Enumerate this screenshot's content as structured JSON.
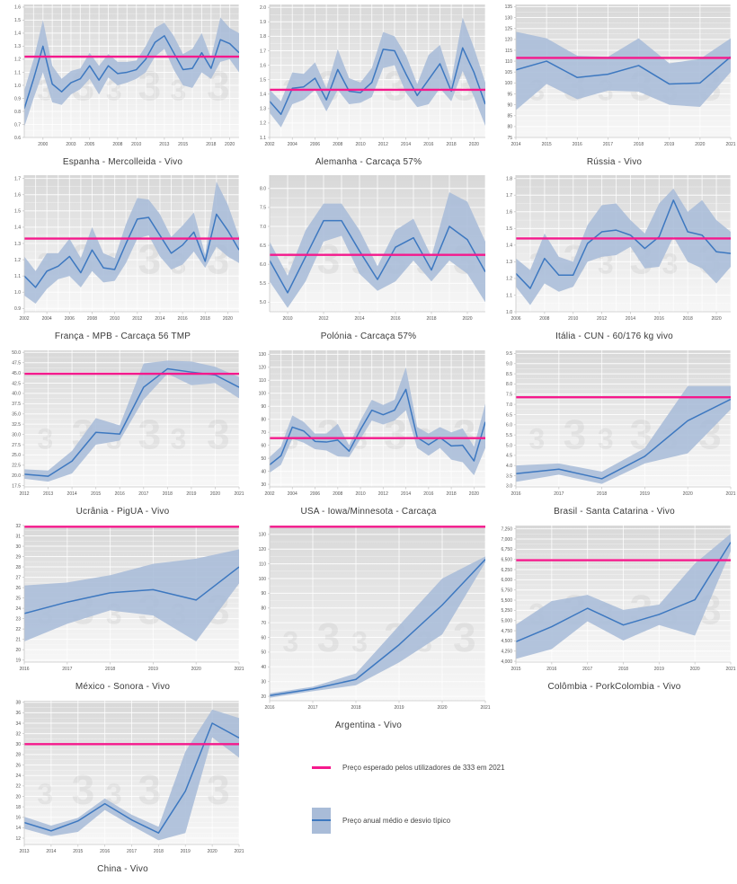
{
  "legend": {
    "expected_label": "Preço esperado pelos utilizadores de 333 em 2021",
    "band_label": "Preço anual médio e desvio típico"
  },
  "watermark": {
    "glyph": "3"
  },
  "colors": {
    "mean_line": "#3d78c0",
    "band_fill": "#a9bcd8",
    "expected_line": "#f5198c",
    "plot_bg_top": "#d8d8d8",
    "plot_bg_mid": "#e9e9e9",
    "plot_bg_bottom": "#f7f7f7",
    "grid": "#ffffff",
    "axis_line": "#c8c8c8",
    "tick_text": "#555555",
    "watermark": "#808080"
  },
  "chart_data": [
    {
      "type": "area",
      "title": "Espanha - Mercolleida - Vivo",
      "x": [
        1998,
        1999,
        2000,
        2001,
        2002,
        2003,
        2004,
        2005,
        2006,
        2007,
        2008,
        2009,
        2010,
        2011,
        2012,
        2013,
        2014,
        2015,
        2016,
        2017,
        2018,
        2019,
        2020,
        2021
      ],
      "mean": [
        0.82,
        1.05,
        1.3,
        1.01,
        0.95,
        1.02,
        1.05,
        1.15,
        1.04,
        1.15,
        1.09,
        1.1,
        1.12,
        1.2,
        1.33,
        1.38,
        1.25,
        1.12,
        1.13,
        1.25,
        1.13,
        1.35,
        1.32,
        1.25
      ],
      "lower": [
        0.68,
        0.9,
        1.1,
        0.87,
        0.85,
        0.93,
        0.97,
        1.05,
        0.93,
        1.06,
        1.0,
        1.02,
        1.05,
        1.1,
        1.22,
        1.28,
        1.12,
        1.0,
        0.98,
        1.1,
        1.05,
        1.18,
        1.2,
        1.1
      ],
      "upper": [
        0.96,
        1.2,
        1.5,
        1.15,
        1.05,
        1.11,
        1.13,
        1.25,
        1.15,
        1.24,
        1.18,
        1.18,
        1.19,
        1.3,
        1.44,
        1.48,
        1.38,
        1.24,
        1.28,
        1.4,
        1.21,
        1.52,
        1.44,
        1.4
      ],
      "expected": 1.22,
      "ylim": [
        0.6,
        1.62
      ],
      "ystep": 0.1,
      "comma": false,
      "xticks": [
        2000,
        2003,
        2005,
        2008,
        2010,
        2013,
        2015,
        2018,
        2020
      ]
    },
    {
      "type": "area",
      "title": "Alemanha - Carcaça 57%",
      "x": [
        2002,
        2003,
        2004,
        2005,
        2006,
        2007,
        2008,
        2009,
        2010,
        2011,
        2012,
        2013,
        2014,
        2015,
        2016,
        2017,
        2018,
        2019,
        2020,
        2021
      ],
      "mean": [
        1.35,
        1.26,
        1.44,
        1.45,
        1.51,
        1.36,
        1.57,
        1.42,
        1.41,
        1.48,
        1.71,
        1.7,
        1.54,
        1.39,
        1.5,
        1.61,
        1.42,
        1.72,
        1.55,
        1.33
      ],
      "lower": [
        1.27,
        1.17,
        1.33,
        1.36,
        1.43,
        1.28,
        1.43,
        1.33,
        1.34,
        1.38,
        1.58,
        1.6,
        1.41,
        1.31,
        1.33,
        1.44,
        1.35,
        1.56,
        1.38,
        1.18
      ],
      "upper": [
        1.43,
        1.35,
        1.55,
        1.54,
        1.62,
        1.44,
        1.71,
        1.51,
        1.48,
        1.58,
        1.83,
        1.8,
        1.67,
        1.47,
        1.67,
        1.74,
        1.49,
        1.93,
        1.72,
        1.48
      ],
      "expected": 1.43,
      "ylim": [
        1.1,
        2.02
      ],
      "ystep": 0.1,
      "comma": false,
      "xticks": [
        2002,
        2004,
        2006,
        2008,
        2010,
        2012,
        2014,
        2016,
        2018,
        2020
      ]
    },
    {
      "type": "area",
      "title": "Rússia - Vivo",
      "x": [
        2014,
        2015,
        2016,
        2017,
        2018,
        2019,
        2020,
        2021
      ],
      "mean": [
        106,
        110,
        102.5,
        104,
        108,
        99.5,
        100,
        112
      ],
      "lower": [
        87.5,
        99.5,
        92.5,
        96.5,
        96,
        90,
        89,
        105
      ],
      "upper": [
        123.5,
        120.5,
        112.5,
        112,
        120.5,
        109,
        111,
        120.5
      ],
      "expected": 111.5,
      "ylim": [
        75,
        136
      ],
      "ystep": 5,
      "comma": false,
      "xticks": [
        2014,
        2015,
        2016,
        2017,
        2018,
        2019,
        2020,
        2021
      ]
    },
    {
      "type": "area",
      "title": "França - MPB - Carcaça 56 TMP",
      "x": [
        2002,
        2003,
        2004,
        2005,
        2006,
        2007,
        2008,
        2009,
        2010,
        2011,
        2012,
        2013,
        2014,
        2015,
        2016,
        2017,
        2018,
        2019,
        2020,
        2021
      ],
      "mean": [
        1.1,
        1.03,
        1.13,
        1.16,
        1.22,
        1.12,
        1.26,
        1.15,
        1.14,
        1.3,
        1.45,
        1.46,
        1.35,
        1.24,
        1.29,
        1.37,
        1.19,
        1.48,
        1.38,
        1.26
      ],
      "lower": [
        0.98,
        0.93,
        1.02,
        1.08,
        1.1,
        1.03,
        1.13,
        1.06,
        1.07,
        1.18,
        1.33,
        1.35,
        1.22,
        1.14,
        1.17,
        1.25,
        1.15,
        1.28,
        1.22,
        1.18
      ],
      "upper": [
        1.22,
        1.13,
        1.24,
        1.24,
        1.33,
        1.21,
        1.4,
        1.24,
        1.21,
        1.42,
        1.58,
        1.57,
        1.48,
        1.34,
        1.41,
        1.49,
        1.23,
        1.68,
        1.54,
        1.34
      ],
      "expected": 1.33,
      "ylim": [
        0.88,
        1.72
      ],
      "ystep": 0.1,
      "comma": false,
      "xticks": [
        2002,
        2004,
        2006,
        2008,
        2010,
        2012,
        2014,
        2016,
        2018,
        2020
      ]
    },
    {
      "type": "area",
      "title": "Polónia - Carcaça 57%",
      "x": [
        2009,
        2010,
        2011,
        2012,
        2013,
        2014,
        2015,
        2016,
        2017,
        2018,
        2019,
        2020,
        2021
      ],
      "mean": [
        6.1,
        5.25,
        6.2,
        7.15,
        7.15,
        6.35,
        5.6,
        6.45,
        6.7,
        5.85,
        7.0,
        6.65,
        5.8
      ],
      "lower": [
        5.55,
        4.85,
        5.55,
        6.6,
        6.75,
        5.75,
        5.3,
        5.55,
        6.1,
        5.55,
        6.1,
        5.75,
        5.0
      ],
      "upper": [
        6.6,
        5.7,
        6.9,
        7.6,
        7.6,
        6.9,
        5.95,
        6.9,
        7.2,
        6.2,
        7.9,
        7.65,
        6.6
      ],
      "expected": 6.25,
      "ylim": [
        4.75,
        8.35
      ],
      "ystep": 0.5,
      "comma": false,
      "xticks": [
        2010,
        2012,
        2014,
        2016,
        2018,
        2020
      ]
    },
    {
      "type": "area",
      "title": "Itália - CUN - 60/176 kg vivo",
      "x": [
        2006,
        2007,
        2008,
        2009,
        2010,
        2011,
        2012,
        2013,
        2014,
        2015,
        2016,
        2017,
        2018,
        2019,
        2020,
        2021
      ],
      "mean": [
        1.23,
        1.14,
        1.32,
        1.22,
        1.22,
        1.41,
        1.48,
        1.49,
        1.46,
        1.38,
        1.45,
        1.67,
        1.48,
        1.46,
        1.36,
        1.35
      ],
      "lower": [
        1.15,
        1.04,
        1.17,
        1.12,
        1.15,
        1.3,
        1.33,
        1.34,
        1.39,
        1.26,
        1.27,
        1.45,
        1.3,
        1.26,
        1.17,
        1.27
      ],
      "upper": [
        1.32,
        1.25,
        1.47,
        1.33,
        1.3,
        1.52,
        1.64,
        1.65,
        1.55,
        1.47,
        1.65,
        1.74,
        1.6,
        1.67,
        1.55,
        1.48
      ],
      "expected": 1.44,
      "ylim": [
        1.0,
        1.82
      ],
      "ystep": 0.1,
      "comma": false,
      "xticks": [
        2006,
        2008,
        2010,
        2012,
        2014,
        2016,
        2018,
        2020
      ]
    },
    {
      "type": "area",
      "title": "Ucrânia - PigUA - Vivo",
      "x": [
        2012,
        2013,
        2014,
        2015,
        2016,
        2017,
        2018,
        2019,
        2020,
        2021
      ],
      "mean": [
        20.3,
        19.8,
        23.5,
        30.5,
        30.1,
        41.5,
        46.0,
        45.2,
        44.5,
        41.5
      ],
      "lower": [
        19.2,
        18.5,
        20.5,
        27.5,
        28.5,
        38.5,
        44.8,
        42.0,
        42.5,
        38.8
      ],
      "upper": [
        21.5,
        21.2,
        26.0,
        34.0,
        32.2,
        47.3,
        48.0,
        47.8,
        46.5,
        44.0
      ],
      "expected": 44.8,
      "ylim": [
        17.2,
        50.5
      ],
      "ystep": 2.5,
      "comma": false,
      "xticks": [
        2012,
        2013,
        2014,
        2015,
        2016,
        2017,
        2018,
        2019,
        2020,
        2021
      ]
    },
    {
      "type": "area",
      "title": "USA - Iowa/Minnesota - Carcaça",
      "x": [
        2002,
        2003,
        2004,
        2005,
        2006,
        2007,
        2008,
        2009,
        2010,
        2011,
        2012,
        2013,
        2014,
        2015,
        2016,
        2017,
        2018,
        2019,
        2020,
        2021
      ],
      "mean": [
        45,
        52,
        74,
        71,
        63,
        62.5,
        64,
        55.5,
        72,
        87,
        83.5,
        87,
        103,
        66,
        60.5,
        66,
        59.5,
        60,
        48,
        78
      ],
      "lower": [
        39,
        45,
        65,
        62,
        57,
        56,
        51.5,
        51,
        65,
        79,
        76,
        79,
        87,
        58,
        52,
        58,
        49,
        47,
        37,
        58
      ],
      "upper": [
        51,
        59,
        83,
        78,
        69,
        69,
        76.5,
        60,
        79,
        95,
        91,
        95,
        120,
        74,
        69,
        74,
        70,
        73,
        59,
        92
      ],
      "expected": 65.5,
      "ylim": [
        28,
        133
      ],
      "ystep": 10,
      "comma": false,
      "xticks": [
        2002,
        2004,
        2006,
        2008,
        2010,
        2012,
        2014,
        2016,
        2018,
        2020
      ]
    },
    {
      "type": "area",
      "title": "Brasil - Santa Catarina - Vivo",
      "x": [
        2016,
        2017,
        2018,
        2019,
        2020,
        2021
      ],
      "mean": [
        3.6,
        3.82,
        3.35,
        4.45,
        6.2,
        7.25
      ],
      "lower": [
        3.2,
        3.55,
        3.1,
        4.1,
        4.6,
        6.75
      ],
      "upper": [
        4.0,
        4.1,
        3.7,
        4.85,
        7.9,
        7.9
      ],
      "expected": 7.35,
      "ylim": [
        2.95,
        9.65
      ],
      "ystep": 0.5,
      "comma": false,
      "xticks": [
        2016,
        2017,
        2018,
        2019,
        2020,
        2021
      ]
    },
    {
      "type": "area",
      "title": "México - Sonora - Vivo",
      "x": [
        2016,
        2017,
        2018,
        2019,
        2020,
        2021
      ],
      "mean": [
        23.5,
        24.6,
        25.5,
        25.8,
        24.8,
        28.0
      ],
      "lower": [
        20.8,
        22.5,
        23.8,
        23.3,
        20.8,
        26.4
      ],
      "upper": [
        26.2,
        26.5,
        27.2,
        28.3,
        28.8,
        29.7
      ],
      "expected": 32,
      "ylim": [
        18.8,
        32
      ],
      "ystep": 1,
      "comma": false,
      "xticks": [
        2016,
        2017,
        2018,
        2019,
        2020,
        2021
      ]
    },
    {
      "type": "area",
      "title": "Argentina - Vivo",
      "x": [
        2016,
        2017,
        2018,
        2019,
        2020,
        2021
      ],
      "mean": [
        20.5,
        25,
        31.5,
        55,
        82,
        113
      ],
      "lower": [
        19,
        23.5,
        27.5,
        43,
        62,
        111
      ],
      "upper": [
        22,
        26.5,
        35.5,
        68,
        100,
        115
      ],
      "expected": 135.5,
      "ylim": [
        17,
        136
      ],
      "ystep": 10,
      "comma": false,
      "xticks": [
        2016,
        2017,
        2018,
        2019,
        2020,
        2021
      ]
    },
    {
      "type": "area",
      "title": "Colômbia - PorkColombia - Vivo",
      "x": [
        2015,
        2016,
        2017,
        2018,
        2019,
        2020,
        2021
      ],
      "mean": [
        4480,
        4850,
        5300,
        4890,
        5150,
        5510,
        6920
      ],
      "lower": [
        4060,
        4300,
        4980,
        4510,
        4890,
        4630,
        6700
      ],
      "upper": [
        4900,
        5480,
        5630,
        5260,
        5390,
        6400,
        7130
      ],
      "expected": 6480,
      "ylim": [
        3980,
        7330
      ],
      "ystep": 250,
      "comma": true,
      "xticks": [
        2015,
        2016,
        2017,
        2018,
        2019,
        2020,
        2021
      ]
    },
    {
      "type": "area",
      "title": "China - Vivo",
      "x": [
        2013,
        2014,
        2015,
        2016,
        2017,
        2018,
        2019,
        2020,
        2021
      ],
      "mean": [
        15.0,
        13.4,
        15.3,
        18.6,
        15.5,
        13.0,
        21.0,
        34.0,
        31.2
      ],
      "lower": [
        13.8,
        12.4,
        13.2,
        17.4,
        14.4,
        11.6,
        13.0,
        31.3,
        27.4
      ],
      "upper": [
        16.1,
        14.4,
        15.9,
        19.6,
        16.5,
        14.2,
        28.6,
        36.6,
        35.0
      ],
      "expected": 30,
      "ylim": [
        10.8,
        38.3
      ],
      "ystep": 2,
      "comma": false,
      "xticks": [
        2013,
        2014,
        2015,
        2016,
        2017,
        2018,
        2019,
        2020,
        2021
      ]
    }
  ]
}
